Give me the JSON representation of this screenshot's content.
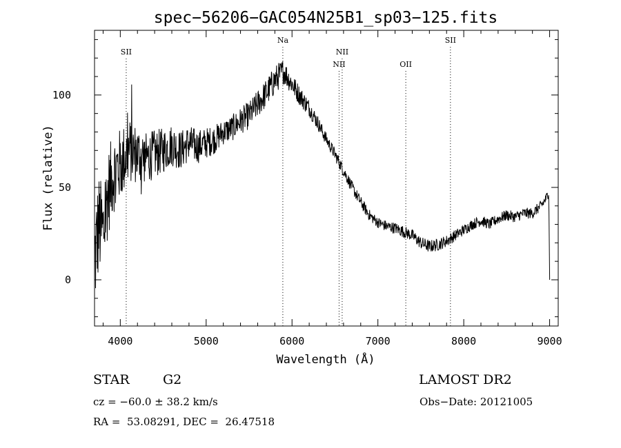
{
  "chart_data": {
    "type": "line",
    "title": "spec−56206−GAC054N25B1_sp03−125.fits",
    "xlabel": "Wavelength (Å)",
    "ylabel": "Flux (relative)",
    "xlim": [
      3700,
      9100
    ],
    "ylim": [
      -25,
      135
    ],
    "x_ticks": [
      4000,
      5000,
      6000,
      7000,
      8000,
      9000
    ],
    "x_tick_labels": [
      "4000",
      "5000",
      "6000",
      "7000",
      "8000",
      "9000"
    ],
    "y_ticks": [
      0,
      50,
      100
    ],
    "y_tick_labels": [
      "0",
      "50",
      "100"
    ],
    "grid": false,
    "series": [
      {
        "color": "#000000",
        "anchors": [
          [
            3700,
            10
          ],
          [
            3750,
            30
          ],
          [
            3800,
            25
          ],
          [
            3850,
            45
          ],
          [
            3900,
            55
          ],
          [
            3950,
            60
          ],
          [
            4000,
            62
          ],
          [
            4100,
            70
          ],
          [
            4200,
            68
          ],
          [
            4300,
            66
          ],
          [
            4400,
            68
          ],
          [
            4500,
            70
          ],
          [
            4600,
            73
          ],
          [
            4700,
            70
          ],
          [
            4800,
            74
          ],
          [
            4900,
            72
          ],
          [
            5000,
            74
          ],
          [
            5100,
            76
          ],
          [
            5200,
            80
          ],
          [
            5300,
            82
          ],
          [
            5400,
            86
          ],
          [
            5500,
            89
          ],
          [
            5600,
            95
          ],
          [
            5700,
            101
          ],
          [
            5800,
            108
          ],
          [
            5900,
            113
          ],
          [
            6000,
            106
          ],
          [
            6100,
            99
          ],
          [
            6200,
            93
          ],
          [
            6300,
            85
          ],
          [
            6400,
            76
          ],
          [
            6500,
            68
          ],
          [
            6600,
            59
          ],
          [
            6700,
            50
          ],
          [
            6800,
            42
          ],
          [
            6900,
            35
          ],
          [
            7000,
            31
          ],
          [
            7100,
            29
          ],
          [
            7200,
            28
          ],
          [
            7300,
            26
          ],
          [
            7400,
            24
          ],
          [
            7500,
            20
          ],
          [
            7600,
            18
          ],
          [
            7700,
            19
          ],
          [
            7800,
            21
          ],
          [
            7900,
            24
          ],
          [
            8000,
            27
          ],
          [
            8100,
            30
          ],
          [
            8200,
            32
          ],
          [
            8300,
            30
          ],
          [
            8400,
            33
          ],
          [
            8500,
            35
          ],
          [
            8600,
            34
          ],
          [
            8700,
            36
          ],
          [
            8800,
            36
          ],
          [
            8900,
            40
          ],
          [
            8960,
            44
          ],
          [
            8990,
            48
          ],
          [
            9000,
            0
          ]
        ],
        "noise_amplitude": [
          [
            3700,
            30
          ],
          [
            3900,
            22
          ],
          [
            4300,
            14
          ],
          [
            4800,
            10
          ],
          [
            5200,
            7
          ],
          [
            5800,
            8
          ],
          [
            6000,
            6
          ],
          [
            6400,
            3.5
          ],
          [
            7000,
            3
          ],
          [
            7600,
            3.5
          ],
          [
            8000,
            3
          ],
          [
            9000,
            3
          ]
        ]
      }
    ],
    "lines": [
      {
        "label": "SII",
        "x": 4069,
        "label_row": 0
      },
      {
        "label": "Na",
        "x": 5893,
        "label_row": -1
      },
      {
        "label": "NII",
        "x": 6548,
        "label_row": 1
      },
      {
        "label": "NII",
        "x": 6584,
        "label_row": 0
      },
      {
        "label": "OII",
        "x": 7325,
        "label_row": 1
      },
      {
        "label": "SII",
        "x": 7845,
        "label_row": -1
      }
    ]
  },
  "info": {
    "class": "STAR",
    "subclass": "G2",
    "survey": "LAMOST DR2",
    "cz": "cz = −60.0 ± 38.2 km/s",
    "obs_date": "Obs−Date: 20121005",
    "coords": "RA =  53.08291, DEC =  26.47518"
  }
}
